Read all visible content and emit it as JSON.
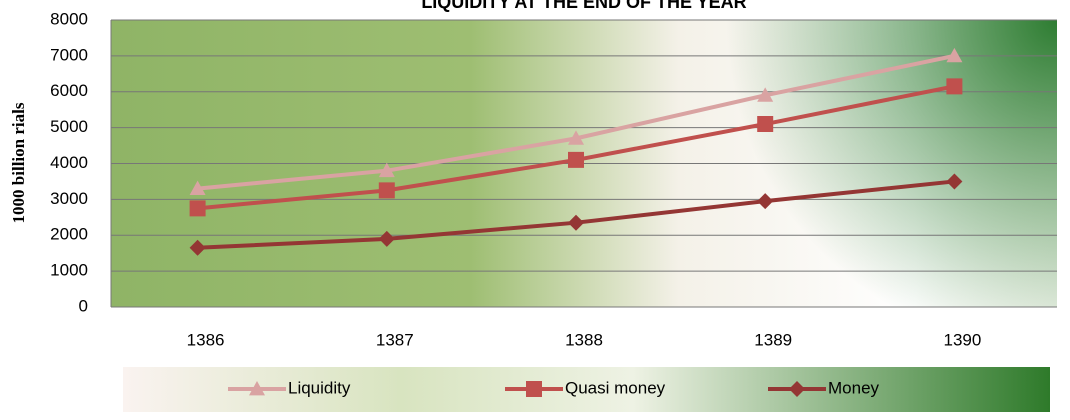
{
  "chart_data": {
    "type": "line",
    "title": "LIQUIDITY AT THE END OF THE YEAR",
    "y_label": "1000 billion rials",
    "categories": [
      "1386",
      "1387",
      "1388",
      "1389",
      "1390"
    ],
    "series": [
      {
        "name": "Liquidity",
        "color": "#d9a3a2",
        "marker": "triangle",
        "values": [
          3300,
          3800,
          4700,
          5900,
          7000
        ]
      },
      {
        "name": "Quasi money",
        "color": "#c0504d",
        "marker": "square",
        "values": [
          2750,
          3250,
          4100,
          5100,
          6150
        ]
      },
      {
        "name": "Money",
        "color": "#943634",
        "marker": "diamond",
        "values": [
          1650,
          1900,
          2350,
          2950,
          3500
        ]
      }
    ],
    "ylim": [
      0,
      8000
    ],
    "yticks": [
      0,
      1000,
      2000,
      3000,
      4000,
      5000,
      6000,
      7000,
      8000
    ],
    "grid": true
  }
}
